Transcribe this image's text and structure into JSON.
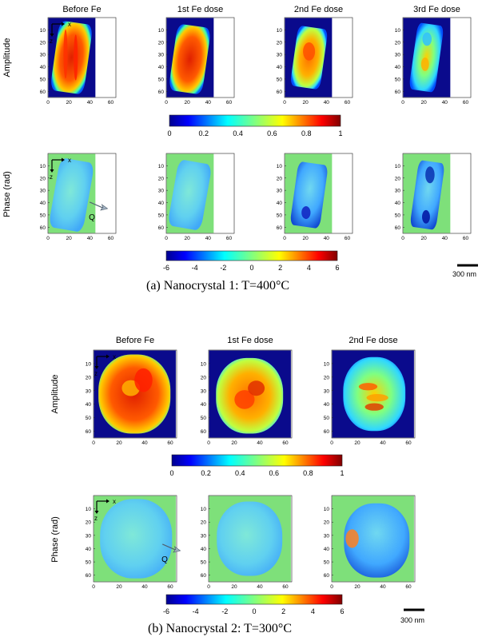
{
  "panel_a": {
    "caption": "(a) Nanocrystal 1: T=400°C",
    "columns": [
      "Before Fe",
      "1st Fe dose",
      "2nd Fe dose",
      "3rd Fe dose"
    ],
    "row_labels": [
      "Amplitude",
      "Phase (rad)"
    ],
    "y_ticks": [
      "10",
      "20",
      "30",
      "40",
      "50",
      "60"
    ],
    "x_ticks": [
      "0",
      "20",
      "40",
      "60"
    ],
    "axis_x": "x",
    "axis_z": "z",
    "q_label": "Q",
    "amp_colorbar_ticks": [
      "0",
      "0.2",
      "0.4",
      "0.6",
      "0.8",
      "1"
    ],
    "phase_colorbar_ticks": [
      "-6",
      "-4",
      "-2",
      "0",
      "2",
      "4",
      "6"
    ],
    "scale_bar": "300 nm"
  },
  "panel_b": {
    "caption": "(b) Nanocrystal 2: T=300°C",
    "columns": [
      "Before Fe",
      "1st Fe dose",
      "2nd Fe dose"
    ],
    "row_labels": [
      "Amplitude",
      "Phase (rad)"
    ],
    "y_ticks": [
      "10",
      "20",
      "30",
      "40",
      "50",
      "60"
    ],
    "x_ticks": [
      "0",
      "20",
      "40",
      "60"
    ],
    "axis_x": "x",
    "axis_z": "z",
    "q_label": "Q",
    "amp_colorbar_ticks": [
      "0",
      "0.2",
      "0.4",
      "0.6",
      "0.8",
      "1"
    ],
    "phase_colorbar_ticks": [
      "-6",
      "-4",
      "-2",
      "0",
      "2",
      "4",
      "6"
    ],
    "scale_bar": "300 nm"
  },
  "colors": {
    "amp_background": "#0a0a8c",
    "phase_background": "#7ee07a",
    "jet": [
      "#00008f",
      "#0000ff",
      "#0080ff",
      "#00ffff",
      "#80ff80",
      "#ffff00",
      "#ff8000",
      "#ff0000",
      "#800000"
    ]
  }
}
